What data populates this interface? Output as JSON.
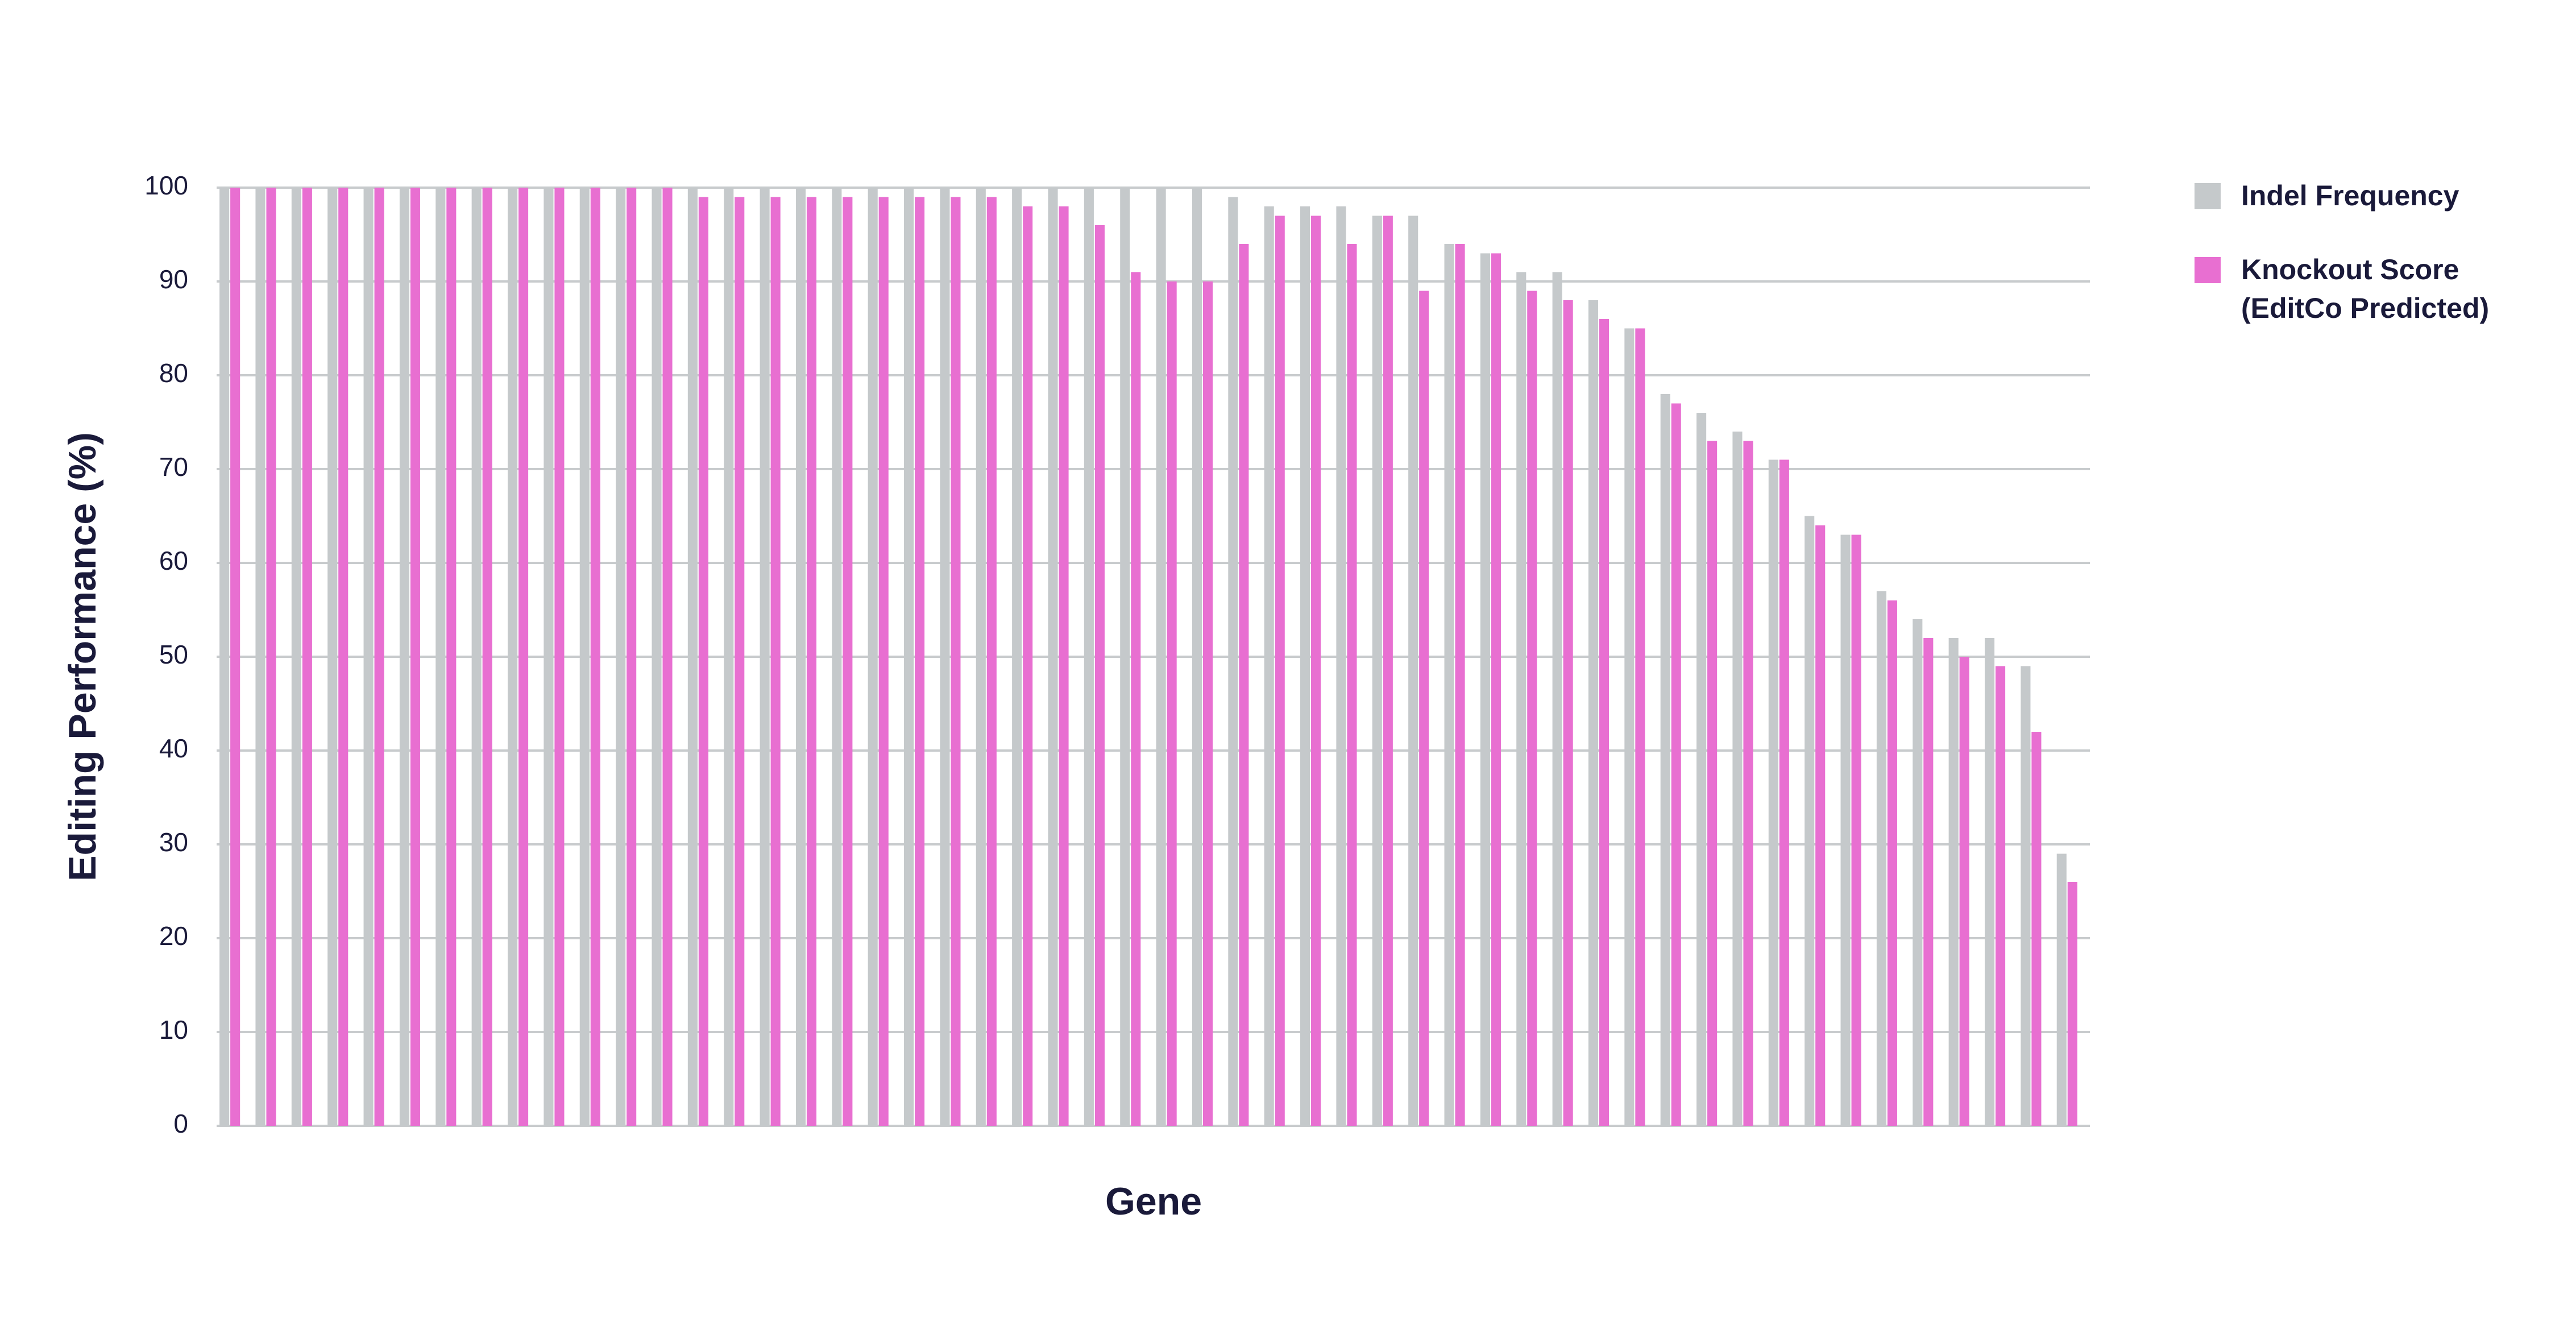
{
  "chart_data": {
    "type": "bar",
    "x_label": "Gene",
    "y_label": "Editing Performance (%)",
    "categories": [
      null,
      null,
      null,
      null,
      null,
      null,
      null,
      null,
      null,
      null,
      null,
      null,
      null,
      null,
      null,
      null,
      null,
      null,
      null,
      null,
      null,
      null,
      null,
      null,
      null,
      null,
      null,
      null,
      null,
      null,
      null,
      null,
      null,
      null,
      null,
      null,
      null,
      null,
      null,
      null,
      null,
      null,
      null,
      null,
      null,
      null,
      null,
      null,
      null,
      null,
      null,
      null
    ],
    "series": [
      {
        "name": "Indel Frequency",
        "color": "#c5c9cb",
        "values": [
          100,
          100,
          100,
          100,
          100,
          100,
          100,
          100,
          100,
          100,
          100,
          100,
          100,
          100,
          100,
          100,
          100,
          100,
          100,
          100,
          100,
          100,
          100,
          100,
          100,
          100,
          100,
          100,
          99,
          98,
          98,
          98,
          97,
          97,
          94,
          93,
          91,
          91,
          88,
          85,
          78,
          76,
          74,
          71,
          65,
          63,
          57,
          54,
          52,
          52,
          49,
          29
        ]
      },
      {
        "name": "Knockout Score (EditCo Predicted)",
        "color": "#e86fd1",
        "values": [
          100,
          100,
          100,
          100,
          100,
          100,
          100,
          100,
          100,
          100,
          100,
          100,
          100,
          99,
          99,
          99,
          99,
          99,
          99,
          99,
          99,
          99,
          98,
          98,
          96,
          91,
          90,
          90,
          94,
          97,
          97,
          94,
          97,
          89,
          94,
          93,
          89,
          88,
          86,
          85,
          77,
          73,
          73,
          71,
          64,
          63,
          56,
          52,
          50,
          49,
          42,
          26
        ]
      }
    ],
    "ylim": [
      0,
      100
    ],
    "yticks": [
      0,
      10,
      20,
      30,
      40,
      50,
      60,
      70,
      80,
      90,
      100
    ],
    "grid": true,
    "legend": "right"
  }
}
